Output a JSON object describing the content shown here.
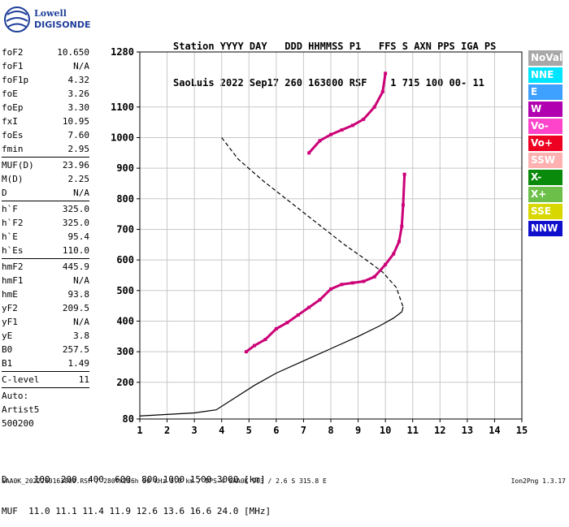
{
  "logo": {
    "line1": "Lowell",
    "line2": "DIGISONDE"
  },
  "header": {
    "line1": "Station YYYY DAY   DDD HHMMSS P1   FFS S AXN PPS IGA PS",
    "line2": "SaoLuis 2022 Sep17 260 163000 RSF    1 715 100 00- 11"
  },
  "params": {
    "group1": [
      {
        "name": "foF2",
        "value": "10.650"
      },
      {
        "name": "foF1",
        "value": "N/A"
      },
      {
        "name": "foF1p",
        "value": "4.32"
      },
      {
        "name": "foE",
        "value": "3.26"
      },
      {
        "name": "foEp",
        "value": "3.30"
      },
      {
        "name": "fxI",
        "value": "10.95"
      },
      {
        "name": "foEs",
        "value": "7.60"
      },
      {
        "name": "fmin",
        "value": "2.95"
      }
    ],
    "group2": [
      {
        "name": "MUF(D)",
        "value": "23.96"
      },
      {
        "name": "M(D)",
        "value": "2.25"
      },
      {
        "name": "D",
        "value": "N/A"
      }
    ],
    "group3": [
      {
        "name": "h`F",
        "value": "325.0"
      },
      {
        "name": "h`F2",
        "value": "325.0"
      },
      {
        "name": "h`E",
        "value": "95.4"
      },
      {
        "name": "h`Es",
        "value": "110.0"
      }
    ],
    "group4": [
      {
        "name": "hmF2",
        "value": "445.9"
      },
      {
        "name": "hmF1",
        "value": "N/A"
      },
      {
        "name": "hmE",
        "value": "93.8"
      },
      {
        "name": "yF2",
        "value": "209.5"
      },
      {
        "name": "yF1",
        "value": "N/A"
      },
      {
        "name": "yE",
        "value": "3.8"
      },
      {
        "name": "B0",
        "value": "257.5"
      },
      {
        "name": "B1",
        "value": "1.49"
      }
    ],
    "group5": [
      {
        "name": "C-level",
        "value": "11"
      }
    ],
    "auto_lines": [
      "Auto:",
      "Artist5",
      "500200"
    ]
  },
  "legend": [
    {
      "label": "NoVal",
      "color": "#a8a8a8"
    },
    {
      "label": "NNE",
      "color": "#00e5ff"
    },
    {
      "label": "E",
      "color": "#3ea0ff"
    },
    {
      "label": "W",
      "color": "#b000b0"
    },
    {
      "label": "Vo-",
      "color": "#ff44cc"
    },
    {
      "label": "Vo+",
      "color": "#ee0022"
    },
    {
      "label": "SSW",
      "color": "#ffb0b0"
    },
    {
      "label": "X-",
      "color": "#0a8a0a"
    },
    {
      "label": "X+",
      "color": "#6cc04a"
    },
    {
      "label": "SSE",
      "color": "#d8d800"
    },
    {
      "label": "NNW",
      "color": "#1010cc"
    }
  ],
  "muf_table": {
    "line1": "D     100  200  400  600  800 1000 1500 3000 [km]",
    "line2": "MUF  11.0 11.1 11.4 11.9 12.6 13.6 16.6 24.0 [MHz]"
  },
  "footer": {
    "left": "SAA0K_2022260163000.RSF / 280fx256h 50 kHz 5.0 km / DPS-4 SAA0K 903 / 2.6 S 315.8 E",
    "right": "Ion2Png 1.3.17"
  },
  "chart_data": {
    "type": "scatter",
    "x_ticks": [
      "1",
      "2",
      "3",
      "4",
      "5",
      "6",
      "7",
      "8",
      "9",
      "10",
      "11",
      "12",
      "13",
      "14",
      "15"
    ],
    "y_ticks": [
      "80",
      "200",
      "300",
      "400",
      "500",
      "600",
      "700",
      "800",
      "900",
      "1000",
      "1100",
      "1280"
    ],
    "xlim": [
      1,
      15
    ],
    "ylim": [
      80,
      1280
    ],
    "grid": "on",
    "series": [
      {
        "color": "#000000",
        "x": [
          1.0,
          2.0,
          3.0,
          3.8,
          4.5,
          5.2,
          6.0,
          7.0,
          8.0,
          9.0,
          9.8,
          10.3,
          10.6,
          10.65
        ],
        "y": [
          90,
          95,
          100,
          110,
          150,
          190,
          230,
          270,
          310,
          350,
          385,
          410,
          430,
          446
        ]
      },
      {
        "color": "#000000",
        "x": [
          4.0,
          4.6,
          5.5,
          6.5,
          7.5,
          8.5,
          9.3,
          9.9,
          10.4,
          10.65
        ],
        "y": [
          1000,
          930,
          860,
          790,
          720,
          650,
          600,
          560,
          510,
          446
        ]
      },
      {
        "color": "#cc0077",
        "x": [
          4.9,
          5.2,
          5.6,
          6.0,
          6.4,
          6.8,
          7.2,
          7.6,
          8.0,
          8.4,
          8.8,
          9.2,
          9.6,
          10.0,
          10.3,
          10.5,
          10.6,
          10.65,
          10.7
        ],
        "y": [
          300,
          320,
          340,
          375,
          395,
          420,
          445,
          470,
          505,
          520,
          525,
          530,
          545,
          585,
          620,
          660,
          710,
          780,
          880
        ]
      },
      {
        "color": "#cc0077",
        "x": [
          7.2,
          7.6,
          8.0,
          8.4,
          8.8,
          9.2,
          9.6,
          9.9,
          10.0
        ],
        "y": [
          950,
          990,
          1010,
          1025,
          1040,
          1060,
          1100,
          1150,
          1210
        ]
      }
    ]
  }
}
